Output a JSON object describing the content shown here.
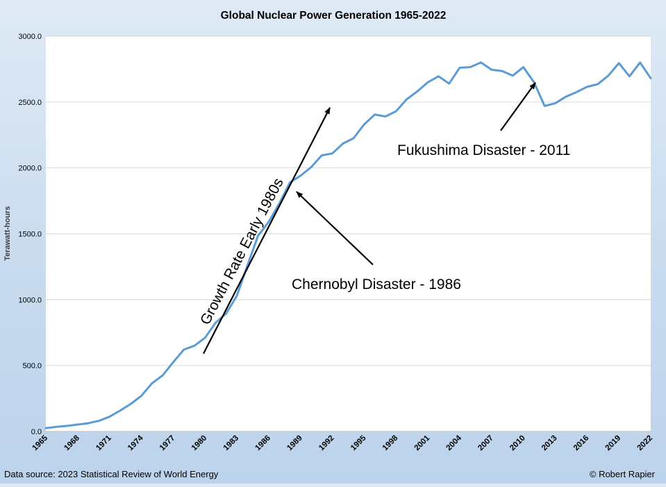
{
  "chart_data": {
    "type": "line",
    "title": "Global Nuclear Power Generation 1965-2022",
    "ylabel": "Terawatt-hours",
    "xlabel": "",
    "ylim": [
      0,
      3000
    ],
    "yticks": [
      "0.0",
      "500.0",
      "1000.0",
      "1500.0",
      "2000.0",
      "2500.0",
      "3000.0"
    ],
    "xtick_labels": [
      "1965",
      "1968",
      "1971",
      "1974",
      "1977",
      "1980",
      "1983",
      "1986",
      "1989",
      "1992",
      "1995",
      "1998",
      "2001",
      "2004",
      "2007",
      "2010",
      "2013",
      "2016",
      "2019",
      "2022"
    ],
    "grid": "horizontal",
    "line_color": "#5b9bd5",
    "x": [
      1965,
      1966,
      1967,
      1968,
      1969,
      1970,
      1971,
      1972,
      1973,
      1974,
      1975,
      1976,
      1977,
      1978,
      1979,
      1980,
      1981,
      1982,
      1983,
      1984,
      1985,
      1986,
      1987,
      1988,
      1989,
      1990,
      1991,
      1992,
      1993,
      1994,
      1995,
      1996,
      1997,
      1998,
      1999,
      2000,
      2001,
      2002,
      2003,
      2004,
      2005,
      2006,
      2007,
      2008,
      2009,
      2010,
      2011,
      2012,
      2013,
      2014,
      2015,
      2016,
      2017,
      2018,
      2019,
      2020,
      2021,
      2022
    ],
    "series": [
      {
        "values": [
          25,
          35,
          42,
          52,
          62,
          80,
          112,
          158,
          208,
          270,
          365,
          425,
          525,
          620,
          650,
          710,
          825,
          895,
          1030,
          1260,
          1485,
          1590,
          1730,
          1890,
          1940,
          2005,
          2095,
          2110,
          2185,
          2225,
          2330,
          2405,
          2390,
          2430,
          2520,
          2580,
          2650,
          2695,
          2640,
          2760,
          2765,
          2800,
          2745,
          2735,
          2700,
          2765,
          2650,
          2470,
          2490,
          2540,
          2575,
          2615,
          2635,
          2700,
          2795,
          2695,
          2800,
          2680
        ]
      }
    ],
    "annotations": [
      {
        "text": "Growth Rate Early 1980s"
      },
      {
        "text": "Chernobyl Disaster - 1986"
      },
      {
        "text": "Fukushima Disaster - 2011"
      }
    ]
  },
  "footer": {
    "source": "Data source: 2023 Statistical Review of World Energy",
    "credit": "© Robert Rapier"
  }
}
